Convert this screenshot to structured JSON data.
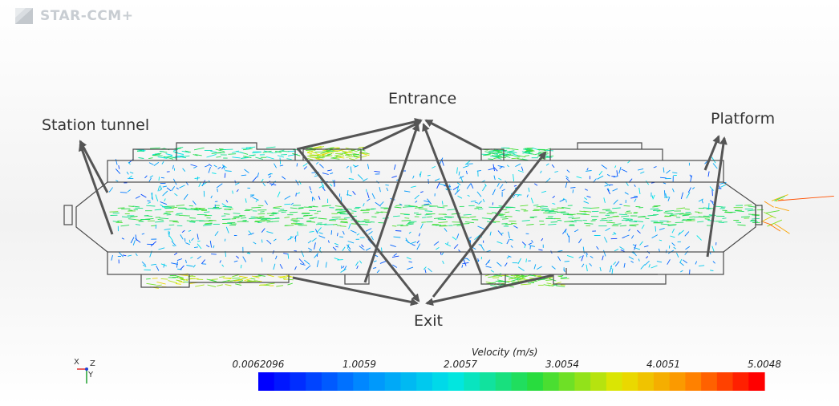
{
  "logo": {
    "text": "STAR-CCM+",
    "icon": "star-ccm-logo-icon"
  },
  "labels": {
    "station_tunnel": "Station tunnel",
    "entrance": "Entrance",
    "platform": "Platform",
    "exit": "Exit"
  },
  "colorbar": {
    "title": "Velocity (m/s)",
    "ticks": [
      "0.0062096",
      "1.0059",
      "2.0057",
      "3.0054",
      "4.0051",
      "5.0048"
    ],
    "min": 0.0062096,
    "max": 5.0048,
    "segments": 32,
    "colormap": "blue-red"
  },
  "axes_triad": {
    "x_label": "X",
    "y_label": "Y",
    "z_label": "Z"
  },
  "colors": {
    "outline": "#4a4a4a",
    "arrow": "#555555",
    "high": "#ff0000",
    "low": "#0000ff"
  }
}
